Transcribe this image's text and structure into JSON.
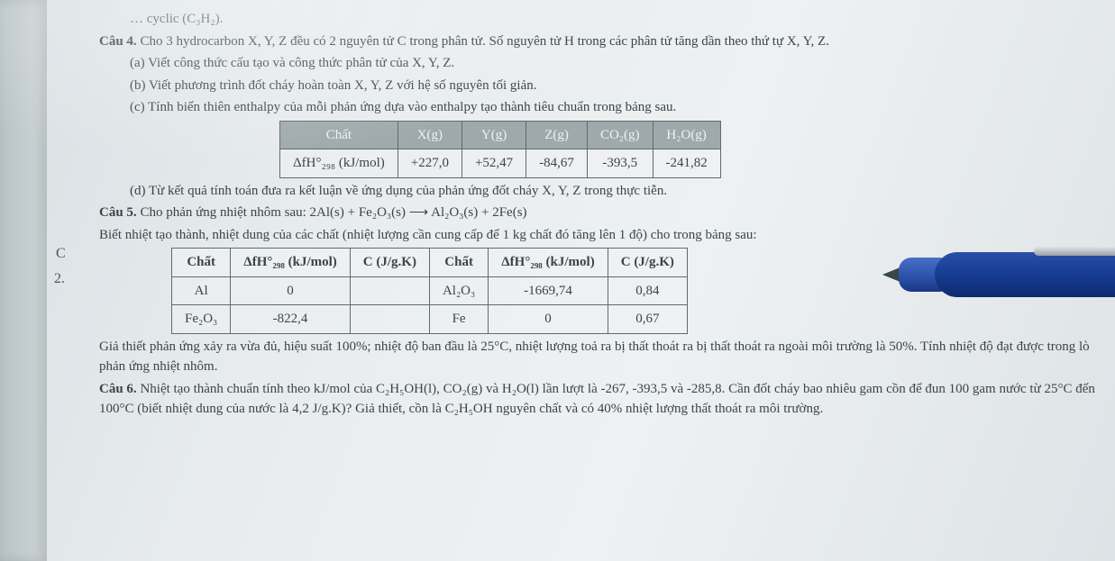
{
  "top_fragment": "… cyclic (C₃H₂).",
  "q4": {
    "title": "Câu 4.",
    "intro": "Cho 3 hydrocarbon X, Y, Z đều có 2 nguyên tử C trong phân tử. Số nguyên tử H trong các phân tử tăng dần theo thứ tự X, Y, Z.",
    "a": "(a) Viết công thức cấu tạo và công thức phân tử của X, Y, Z.",
    "b": "(b) Viết phương trình đốt cháy hoàn toàn X, Y, Z với hệ số nguyên tối giản.",
    "c": "(c) Tính biến thiên enthalpy của mỗi phản ứng dựa vào enthalpy tạo thành tiêu chuẩn trong bảng sau.",
    "d": "(d) Từ kết quả tính toán đưa ra kết luận về ứng dụng của phản ứng đốt cháy X, Y, Z trong thực tiễn."
  },
  "table1": {
    "header": [
      "Chất",
      "X(g)",
      "Y(g)",
      "Z(g)",
      "CO₂(g)",
      "H₂O(g)"
    ],
    "row_label": "ΔfH°₂₉₈ (kJ/mol)",
    "row": [
      "+227,0",
      "+52,47",
      "-84,67",
      "-393,5",
      "-241,82"
    ]
  },
  "q5": {
    "title": "Câu 5.",
    "line1": "Cho phản ứng nhiệt nhôm sau: 2Al(s) + Fe₂O₃(s) ⟶ Al₂O₃(s) + 2Fe(s)",
    "line2": "Biết nhiệt tạo thành, nhiệt dung của các chất (nhiệt lượng cần cung cấp để 1 kg chất đó tăng lên 1 độ)       cho trong bảng sau:"
  },
  "table2": {
    "header": [
      "Chất",
      "ΔfH°₂₉₈ (kJ/mol)",
      "C (J/g.K)",
      "Chất",
      "ΔfH°₂₉₈ (kJ/mol)",
      "C (J/g.K)"
    ],
    "rows": [
      [
        "Al",
        "0",
        "",
        "Al₂O₃",
        "-1669,74",
        "0,84"
      ],
      [
        "Fe₂O₃",
        "-822,4",
        "",
        "Fe",
        "0",
        "0,67"
      ]
    ]
  },
  "q5_rest": "Giả thiết phản ứng xảy ra vừa đủ, hiệu suất 100%; nhiệt độ ban đầu là 25°C, nhiệt lượng toả ra bị thất thoát ra bị thất thoát ra ngoài môi trường là 50%. Tính nhiệt độ đạt được trong lò phản ứng nhiệt nhôm.",
  "q6": {
    "title": "Câu 6.",
    "text": "Nhiệt tạo thành chuẩn tính theo kJ/mol của C₂H₅OH(l), CO₂(g) và H₂O(l) lần lượt là -267, -393,5 và -285,8. Cần đốt cháy bao nhiêu gam cồn để đun 100 gam nước từ 25°C đến 100°C (biết nhiệt dung của nước là 4,2 J/g.K)? Giả thiết, cồn là C₂H₅OH nguyên chất và có 40% nhiệt lượng thất thoát ra môi trường."
  },
  "margins": {
    "c": "C",
    "two": "2."
  },
  "colors": {
    "text": "#3a4548",
    "table_border": "#606a6d",
    "th_bg": "#9fa9ac",
    "th_fg": "#f0f2f3",
    "pen_blue": "#1a3f98"
  }
}
